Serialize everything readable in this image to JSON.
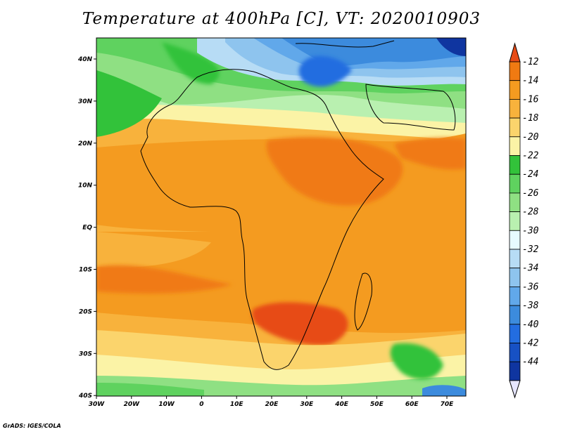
{
  "title": "Temperature at 400hPa [C], VT: 2020010903",
  "credit": "GrADS: IGES/COLA",
  "map": {
    "region": "Africa",
    "variable": "Temperature at 400hPa",
    "units": "C",
    "valid_time": "2020010903",
    "lon_labels": [
      "30W",
      "20W",
      "10W",
      "0",
      "10E",
      "20E",
      "30E",
      "40E",
      "50E",
      "60E",
      "70E"
    ],
    "lat_labels": [
      "40N",
      "30N",
      "20N",
      "10N",
      "EQ",
      "10S",
      "20S",
      "30S",
      "40S"
    ]
  },
  "colorbar": {
    "labels": [
      "-12",
      "-14",
      "-16",
      "-18",
      "-20",
      "-22",
      "-24",
      "-26",
      "-28",
      "-30",
      "-32",
      "-34",
      "-36",
      "-38",
      "-40",
      "-42",
      "-44"
    ],
    "colors": [
      "#e74b16",
      "#f07a12",
      "#f49b20",
      "#f8b23c",
      "#fbd46c",
      "#fbf3a6",
      "#32c23a",
      "#5fd25f",
      "#8fe083",
      "#b9f0b0",
      "#e6fbff",
      "#b7dcf5",
      "#8ec4ee",
      "#61a8ea",
      "#3c8bdd",
      "#236de0",
      "#1751c4",
      "#0f35a0",
      "#0a1a78"
    ]
  }
}
